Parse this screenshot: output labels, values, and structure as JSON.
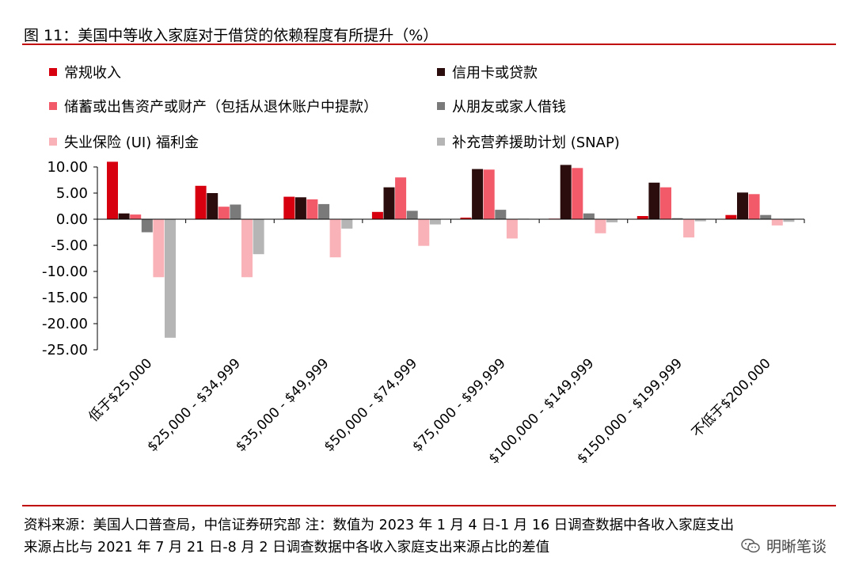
{
  "title": "图 11：美国中等收入家庭对于借贷的依赖程度有所提升（%）",
  "source_note_line1": "资料来源：美国人口普查局，中信证券研究部  注：数值为 2023 年 1 月 4 日-1 月 16 日调查数据中各收入家庭支出",
  "source_note_line2": "来源占比与 2021 年 7 月 21 日-8 月 2 日调查数据中各收入家庭支出来源占比的差值",
  "watermark": "明晰笔谈",
  "chart_data": {
    "type": "bar",
    "title": "图 11：美国中等收入家庭对于借贷的依赖程度有所提升（%）",
    "xlabel": "",
    "ylabel": "",
    "ylim": [
      -25,
      10
    ],
    "yticks": [
      "10.00",
      "5.00",
      "0.00",
      "-5.00",
      "-10.00",
      "-15.00",
      "-20.00",
      "-25.00"
    ],
    "categories": [
      "低于$25,000",
      "$25,000 - $34,999",
      "$35,000 - $49,999",
      "$50,000 - $74,999",
      "$75,000 - $99,999",
      "$100,000 - $149,999",
      "$150,000 - $199,999",
      "不低于$200,000"
    ],
    "legend_position": "top",
    "grid": false,
    "series": [
      {
        "name": "常规收入",
        "color": "#d7000f",
        "values": [
          11.0,
          6.4,
          4.3,
          1.4,
          0.3,
          0.1,
          0.6,
          0.8
        ]
      },
      {
        "name": "信用卡或贷款",
        "color": "#2b0d0d",
        "values": [
          1.1,
          5.0,
          4.2,
          6.1,
          9.6,
          10.4,
          7.0,
          5.1
        ]
      },
      {
        "name": "储蓄或出售资产或财产（包括从退休账户中提款）",
        "color": "#f25a6a",
        "values": [
          0.9,
          2.4,
          3.8,
          8.0,
          9.5,
          9.8,
          6.1,
          4.8
        ]
      },
      {
        "name": "从朋友或家人借钱",
        "color": "#7a7a7a",
        "values": [
          -2.5,
          2.8,
          2.9,
          1.6,
          1.8,
          1.1,
          0.2,
          0.8
        ]
      },
      {
        "name": "失业保险 (UI) 福利金",
        "color": "#f9b3b8",
        "values": [
          -11.1,
          -11.1,
          -7.3,
          -5.1,
          -3.7,
          -2.7,
          -3.5,
          -1.2
        ]
      },
      {
        "name": "补充营养援助计划 (SNAP)",
        "color": "#b5b5b5",
        "values": [
          -22.7,
          -6.7,
          -1.8,
          -1.0,
          0.1,
          -0.6,
          -0.4,
          -0.5
        ]
      }
    ]
  }
}
